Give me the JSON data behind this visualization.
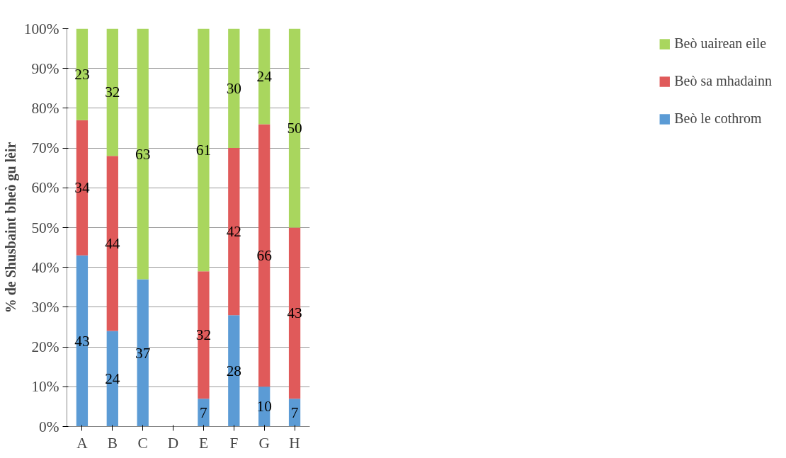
{
  "chart_data": {
    "type": "bar",
    "stacked": true,
    "ylabel": "% de Shusbaint bheò gu lèir",
    "categories": [
      "A",
      "B",
      "C",
      "D",
      "E",
      "F",
      "G",
      "H"
    ],
    "series": [
      {
        "name": "Beò le cothrom",
        "color": "#5b9bd5",
        "values": [
          43,
          24,
          37,
          null,
          7,
          28,
          10,
          7
        ]
      },
      {
        "name": "Beò sa mhadainn",
        "color": "#e05a5a",
        "values": [
          34,
          44,
          null,
          null,
          32,
          42,
          66,
          43
        ]
      },
      {
        "name": "Beò uairean eile",
        "color": "#a9d65e",
        "values": [
          23,
          32,
          63,
          null,
          61,
          30,
          24,
          50
        ]
      }
    ],
    "ylim": [
      0,
      100
    ],
    "yticks": [
      {
        "value": 0,
        "label": "0%"
      },
      {
        "value": 10,
        "label": "10%"
      },
      {
        "value": 20,
        "label": "20%"
      },
      {
        "value": 30,
        "label": "30%"
      },
      {
        "value": 40,
        "label": "40%"
      },
      {
        "value": 50,
        "label": "50%"
      },
      {
        "value": 60,
        "label": "60%"
      },
      {
        "value": 70,
        "label": "70%"
      },
      {
        "value": 80,
        "label": "80%"
      },
      {
        "value": 90,
        "label": "90%"
      },
      {
        "value": 100,
        "label": "100%"
      }
    ],
    "grid": "y",
    "legend": "right",
    "data_labels": true
  }
}
